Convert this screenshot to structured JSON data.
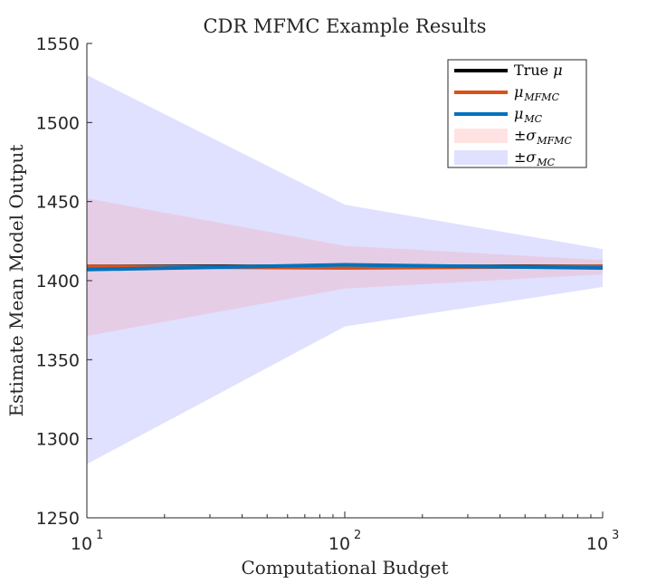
{
  "chart_data": {
    "type": "area",
    "title": "CDR MFMC Example Results",
    "xlabel": "Computational Budget",
    "ylabel": "Estimate Mean Model Output",
    "x_scale": "log",
    "xlim": [
      10,
      1000
    ],
    "ylim": [
      1250,
      1550
    ],
    "x_ticks": [
      {
        "value": 10,
        "base": "10",
        "exp": "1"
      },
      {
        "value": 100,
        "base": "10",
        "exp": "2"
      },
      {
        "value": 1000,
        "base": "10",
        "exp": "3"
      }
    ],
    "y_ticks": [
      1250,
      1300,
      1350,
      1400,
      1450,
      1500,
      1550
    ],
    "x": [
      10,
      100,
      1000
    ],
    "series": [
      {
        "name": "True μ",
        "color": "#000000",
        "values": [
          1409,
          1409,
          1409
        ]
      },
      {
        "name": "μMFMC",
        "color": "#D95319",
        "values": [
          1409,
          1408,
          1409
        ]
      },
      {
        "name": "μMC",
        "color": "#0072BD",
        "values": [
          1407,
          1410,
          1408
        ]
      }
    ],
    "bands": [
      {
        "name": "±σMC",
        "color": "#6666ff",
        "opacity": 0.2,
        "lower": [
          1284,
          1371,
          1396
        ],
        "upper": [
          1530,
          1448,
          1420
        ]
      },
      {
        "name": "±σMFMC",
        "color": "#ff8080",
        "opacity": 0.2,
        "lower": [
          1365,
          1395,
          1404
        ],
        "upper": [
          1452,
          1422,
          1413
        ]
      }
    ],
    "legend": {
      "placement": "top-right",
      "entries": [
        {
          "base": "True ",
          "ital": "μ",
          "sub": "",
          "color": "#000000",
          "kind": "line"
        },
        {
          "base": "",
          "ital": "μ",
          "sub": "MFMC",
          "color": "#D95319",
          "kind": "line"
        },
        {
          "base": "",
          "ital": "μ",
          "sub": "MC",
          "color": "#0072BD",
          "kind": "line"
        },
        {
          "base": "±",
          "ital": "σ",
          "sub": "MFMC",
          "color": "#ffe3e3",
          "kind": "patch"
        },
        {
          "base": "±",
          "ital": "σ",
          "sub": "MC",
          "color": "#e0e0ff",
          "kind": "patch"
        }
      ]
    },
    "grid": false
  }
}
